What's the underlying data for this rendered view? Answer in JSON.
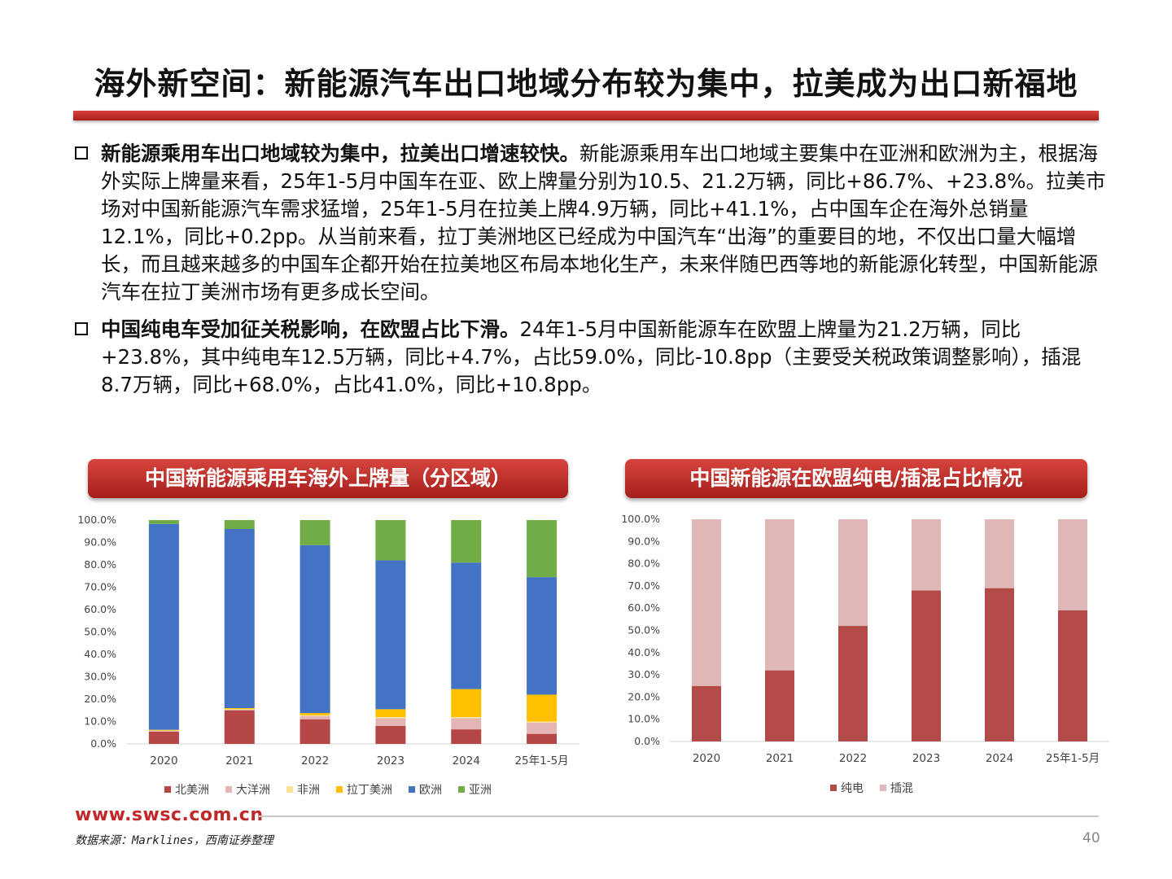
{
  "title": "海外新空间：新能源汽车出口地域分布较为集中，拉美成为出口新福地",
  "bullets": [
    {
      "lead": "新能源乘用车出口地域较为集中，拉美出口增速较快。",
      "text": "新能源乘用车出口地域主要集中在亚洲和欧洲为主，根据海外实际上牌量来看，25年1-5月中国车在亚、欧上牌量分别为10.5、21.2万辆，同比+86.7%、+23.8%。拉美市场对中国新能源汽车需求猛增，25年1-5月在拉美上牌4.9万辆，同比+41.1%，占中国车企在海外总销量12.1%，同比+0.2pp。从当前来看，拉丁美洲地区已经成为中国汽车“出海”的重要目的地，不仅出口量大幅增长，而且越来越多的中国车企都开始在拉美地区布局本地化生产，未来伴随巴西等地的新能源化转型，中国新能源汽车在拉丁美洲市场有更多成长空间。"
    },
    {
      "lead": "中国纯电车受加征关税影响，在欧盟占比下滑。",
      "text": "24年1-5月中国新能源车在欧盟上牌量为21.2万辆，同比+23.8%，其中纯电车12.5万辆，同比+4.7%，占比59.0%，同比-10.8pp（主要受关税政策调整影响），插混8.7万辆，同比+68.0%，占比41.0%，同比+10.8pp。"
    }
  ],
  "chart_data": [
    {
      "type": "bar",
      "stacked": true,
      "title": "中国新能源乘用车海外上牌量（分区域）",
      "categories": [
        "2020",
        "2021",
        "2022",
        "2023",
        "2024",
        "25年1-5月"
      ],
      "y_ticks": [
        "0.0%",
        "10.0%",
        "20.0%",
        "30.0%",
        "40.0%",
        "50.0%",
        "60.0%",
        "70.0%",
        "80.0%",
        "90.0%",
        "100.0%"
      ],
      "ylim": [
        0,
        100
      ],
      "legend_position": "bottom",
      "series": [
        {
          "name": "北美洲",
          "color": "#b54646",
          "values": [
            5.5,
            15.0,
            11.0,
            8.0,
            6.5,
            4.5
          ]
        },
        {
          "name": "大洋洲",
          "color": "#e3b5b5",
          "values": [
            0.3,
            0.3,
            1.5,
            3.5,
            5.0,
            5.0
          ]
        },
        {
          "name": "非洲",
          "color": "#fbe396",
          "values": [
            0.2,
            0.2,
            0.3,
            0.5,
            0.5,
            0.5
          ]
        },
        {
          "name": "拉丁美洲",
          "color": "#ffc000",
          "values": [
            0.3,
            0.5,
            1.0,
            3.5,
            12.5,
            12.0
          ]
        },
        {
          "name": "欧洲",
          "color": "#4472c4",
          "values": [
            92.0,
            80.0,
            75.0,
            66.5,
            56.5,
            52.5
          ]
        },
        {
          "name": "亚洲",
          "color": "#70ad47",
          "values": [
            1.7,
            4.0,
            11.2,
            18.0,
            19.0,
            25.5
          ]
        }
      ]
    },
    {
      "type": "bar",
      "stacked": true,
      "title": "中国新能源在欧盟纯电/插混占比情况",
      "categories": [
        "2020",
        "2021",
        "2022",
        "2023",
        "2024",
        "25年1-5月"
      ],
      "y_ticks": [
        "0.0%",
        "10.0%",
        "20.0%",
        "30.0%",
        "40.0%",
        "50.0%",
        "60.0%",
        "70.0%",
        "80.0%",
        "90.0%",
        "100.0%"
      ],
      "ylim": [
        0,
        100
      ],
      "legend_position": "bottom",
      "series": [
        {
          "name": "纯电",
          "color": "#b24a48",
          "values": [
            25.0,
            32.0,
            52.0,
            68.0,
            69.0,
            59.0
          ]
        },
        {
          "name": "插混",
          "color": "#dfb7b6",
          "values": [
            75.0,
            68.0,
            48.0,
            32.0,
            31.0,
            41.0
          ]
        }
      ]
    }
  ],
  "footer": {
    "url": "www.swsc.com.cn",
    "source": "数据来源：Marklines，西南证券整理",
    "page": "40"
  }
}
